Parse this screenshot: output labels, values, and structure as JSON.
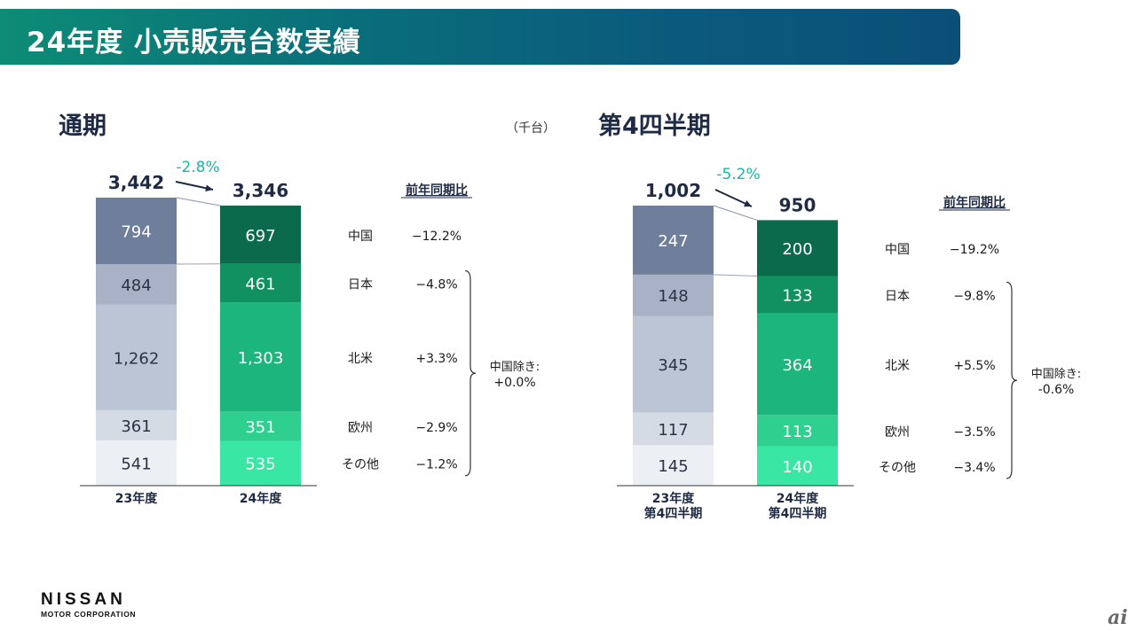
{
  "header": {
    "title": "24年度 小売販売台数実績"
  },
  "footer": {
    "logo": "NISSAN",
    "logo_sub": "MOTOR CORPORATION",
    "watermark": "ai"
  },
  "unit_label": "（千台）",
  "colors": {
    "prev": [
      "#6f7e9b",
      "#a8b1c5",
      "#bcc5d5",
      "#d5dbe4",
      "#eceff4"
    ],
    "curr": [
      "#0b6a4c",
      "#10915f",
      "#1cb57b",
      "#2ecf8f",
      "#39e6a3"
    ],
    "change": "#19b7a6"
  },
  "chart_data": [
    {
      "type": "bar",
      "stacked": true,
      "title": "通期",
      "categories": [
        "23年度",
        "24年度"
      ],
      "series": [
        {
          "name": "中国",
          "values": [
            794,
            697
          ],
          "yoy": "−12.2%"
        },
        {
          "name": "日本",
          "values": [
            484,
            461
          ],
          "yoy": "−4.8%"
        },
        {
          "name": "北米",
          "values": [
            1262,
            1303
          ],
          "yoy": "+3.3%"
        },
        {
          "name": "欧州",
          "values": [
            361,
            351
          ],
          "yoy": "−2.9%"
        },
        {
          "name": "その他",
          "values": [
            541,
            535
          ],
          "yoy": "−1.2%"
        }
      ],
      "totals": [
        "3,442",
        "3,346"
      ],
      "change": "-2.8%",
      "yoy_header": "前年同期比",
      "bracket_label": [
        "中国除き:",
        "+0.0%"
      ]
    },
    {
      "type": "bar",
      "stacked": true,
      "title": "第4四半期",
      "categories": [
        "23年度\n第4四半期",
        "24年度\n第4四半期"
      ],
      "series": [
        {
          "name": "中国",
          "values": [
            247,
            200
          ],
          "yoy": "−19.2%"
        },
        {
          "name": "日本",
          "values": [
            148,
            133
          ],
          "yoy": "−9.8%"
        },
        {
          "name": "北米",
          "values": [
            345,
            364
          ],
          "yoy": "+5.5%"
        },
        {
          "name": "欧州",
          "values": [
            117,
            113
          ],
          "yoy": "−3.5%"
        },
        {
          "name": "その他",
          "values": [
            145,
            140
          ],
          "yoy": "−3.4%"
        }
      ],
      "totals": [
        "1,002",
        "950"
      ],
      "change": "-5.2%",
      "yoy_header": "前年同期比",
      "bracket_label": [
        "中国除き:",
        "-0.6%"
      ]
    }
  ]
}
